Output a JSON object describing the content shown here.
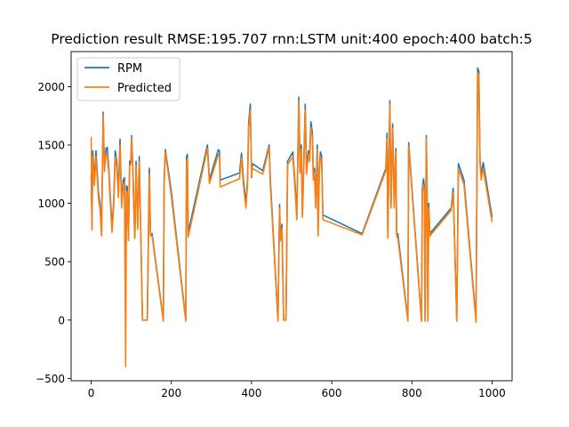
{
  "chart_data": {
    "type": "line",
    "title": "Prediction result RMSE:195.707 rnn:LSTM unit:400 epoch:400 batch:5",
    "xlabel": "",
    "ylabel": "",
    "xlim": [
      -50,
      1050
    ],
    "ylim": [
      -520,
      2300
    ],
    "xticks": [
      0,
      200,
      400,
      600,
      800,
      1000
    ],
    "yticks": [
      -500,
      0,
      500,
      1000,
      1500,
      2000
    ],
    "xtick_labels": [
      "0",
      "200",
      "400",
      "600",
      "800",
      "1000"
    ],
    "ytick_labels": [
      "−500",
      "0",
      "500",
      "1000",
      "1500",
      "2000"
    ],
    "grid": false,
    "legend_position": "upper left",
    "series": [
      {
        "name": "RPM",
        "color": "#1f77b4",
        "points": [
          [
            0,
            1250
          ],
          [
            2,
            800
          ],
          [
            4,
            1450
          ],
          [
            8,
            1200
          ],
          [
            12,
            1450
          ],
          [
            18,
            1100
          ],
          [
            22,
            1000
          ],
          [
            26,
            750
          ],
          [
            30,
            1780
          ],
          [
            33,
            1300
          ],
          [
            37,
            1470
          ],
          [
            40,
            1480
          ],
          [
            44,
            1300
          ],
          [
            47,
            1100
          ],
          [
            52,
            800
          ],
          [
            56,
            1000
          ],
          [
            60,
            1450
          ],
          [
            64,
            1350
          ],
          [
            68,
            1100
          ],
          [
            72,
            1550
          ],
          [
            76,
            1000
          ],
          [
            80,
            1200
          ],
          [
            83,
            1220
          ],
          [
            86,
            0
          ],
          [
            88,
            1150
          ],
          [
            90,
            1140
          ],
          [
            93,
            700
          ],
          [
            96,
            1360
          ],
          [
            99,
            1370
          ],
          [
            101,
            1580
          ],
          [
            104,
            1300
          ],
          [
            107,
            900
          ],
          [
            109,
            700
          ],
          [
            112,
            1360
          ],
          [
            116,
            800
          ],
          [
            120,
            1400
          ],
          [
            124,
            700
          ],
          [
            128,
            0
          ],
          [
            135,
            0
          ],
          [
            140,
            0
          ],
          [
            145,
            1300
          ],
          [
            148,
            740
          ],
          [
            152,
            740
          ],
          [
            180,
            0
          ],
          [
            182,
            1200
          ],
          [
            185,
            1460
          ],
          [
            200,
            1100
          ],
          [
            236,
            0
          ],
          [
            238,
            1400
          ],
          [
            240,
            1420
          ],
          [
            242,
            750
          ],
          [
            290,
            1500
          ],
          [
            295,
            1200
          ],
          [
            312,
            1400
          ],
          [
            317,
            1460
          ],
          [
            320,
            1450
          ],
          [
            322,
            1200
          ],
          [
            370,
            1260
          ],
          [
            375,
            1430
          ],
          [
            380,
            1200
          ],
          [
            386,
            1000
          ],
          [
            390,
            1200
          ],
          [
            393,
            1700
          ],
          [
            397,
            1850
          ],
          [
            400,
            1220
          ],
          [
            402,
            1340
          ],
          [
            428,
            1280
          ],
          [
            444,
            1500
          ],
          [
            447,
            1200
          ],
          [
            466,
            0
          ],
          [
            470,
            990
          ],
          [
            472,
            700
          ],
          [
            476,
            820
          ],
          [
            480,
            0
          ],
          [
            486,
            0
          ],
          [
            490,
            1360
          ],
          [
            503,
            1440
          ],
          [
            508,
            1200
          ],
          [
            513,
            900
          ],
          [
            518,
            1910
          ],
          [
            521,
            1300
          ],
          [
            524,
            1500
          ],
          [
            527,
            900
          ],
          [
            530,
            1300
          ],
          [
            534,
            1850
          ],
          [
            537,
            1300
          ],
          [
            540,
            1400
          ],
          [
            542,
            1450
          ],
          [
            545,
            1400
          ],
          [
            548,
            1700
          ],
          [
            552,
            1600
          ],
          [
            554,
            1250
          ],
          [
            557,
            1300
          ],
          [
            560,
            1000
          ],
          [
            564,
            1500
          ],
          [
            566,
            740
          ],
          [
            569,
            1300
          ],
          [
            572,
            1440
          ],
          [
            575,
            1400
          ],
          [
            578,
            900
          ],
          [
            676,
            740
          ],
          [
            735,
            1300
          ],
          [
            738,
            1600
          ],
          [
            740,
            740
          ],
          [
            742,
            1200
          ],
          [
            745,
            1880
          ],
          [
            748,
            1000
          ],
          [
            752,
            1680
          ],
          [
            756,
            1000
          ],
          [
            760,
            1470
          ],
          [
            762,
            740
          ],
          [
            765,
            740
          ],
          [
            790,
            0
          ],
          [
            792,
            1520
          ],
          [
            824,
            0
          ],
          [
            826,
            1120
          ],
          [
            829,
            1210
          ],
          [
            831,
            1150
          ],
          [
            833,
            0
          ],
          [
            836,
            1580
          ],
          [
            838,
            1100
          ],
          [
            840,
            0
          ],
          [
            842,
            1000
          ],
          [
            845,
            740
          ],
          [
            898,
            960
          ],
          [
            903,
            1130
          ],
          [
            912,
            0
          ],
          [
            916,
            1340
          ],
          [
            930,
            1200
          ],
          [
            960,
            0
          ],
          [
            964,
            2160
          ],
          [
            967,
            2130
          ],
          [
            970,
            1370
          ],
          [
            973,
            1250
          ],
          [
            978,
            1350
          ],
          [
            1000,
            880
          ]
        ]
      },
      {
        "name": "Predicted",
        "color": "#ff7f0e",
        "points": [
          [
            0,
            1570
          ],
          [
            2,
            770
          ],
          [
            4,
            1400
          ],
          [
            8,
            1150
          ],
          [
            12,
            1400
          ],
          [
            18,
            1050
          ],
          [
            22,
            950
          ],
          [
            26,
            720
          ],
          [
            30,
            1760
          ],
          [
            33,
            1270
          ],
          [
            37,
            1420
          ],
          [
            40,
            1420
          ],
          [
            44,
            1260
          ],
          [
            47,
            1050
          ],
          [
            52,
            750
          ],
          [
            56,
            960
          ],
          [
            60,
            1400
          ],
          [
            64,
            1300
          ],
          [
            68,
            1050
          ],
          [
            72,
            1500
          ],
          [
            76,
            960
          ],
          [
            80,
            1150
          ],
          [
            83,
            1180
          ],
          [
            86,
            -400
          ],
          [
            88,
            1100
          ],
          [
            90,
            1100
          ],
          [
            93,
            680
          ],
          [
            96,
            1320
          ],
          [
            99,
            1340
          ],
          [
            101,
            1560
          ],
          [
            104,
            1270
          ],
          [
            107,
            880
          ],
          [
            109,
            700
          ],
          [
            112,
            1320
          ],
          [
            116,
            780
          ],
          [
            120,
            1360
          ],
          [
            124,
            700
          ],
          [
            128,
            0
          ],
          [
            135,
            0
          ],
          [
            140,
            0
          ],
          [
            145,
            1250
          ],
          [
            148,
            720
          ],
          [
            152,
            720
          ],
          [
            180,
            -10
          ],
          [
            182,
            1150
          ],
          [
            185,
            1440
          ],
          [
            200,
            1060
          ],
          [
            236,
            -10
          ],
          [
            238,
            1350
          ],
          [
            240,
            1380
          ],
          [
            242,
            710
          ],
          [
            290,
            1470
          ],
          [
            295,
            1170
          ],
          [
            312,
            1360
          ],
          [
            317,
            1420
          ],
          [
            320,
            1400
          ],
          [
            322,
            1140
          ],
          [
            370,
            1210
          ],
          [
            375,
            1390
          ],
          [
            380,
            1150
          ],
          [
            386,
            960
          ],
          [
            390,
            1160
          ],
          [
            393,
            1650
          ],
          [
            397,
            1800
          ],
          [
            400,
            1230
          ],
          [
            402,
            1300
          ],
          [
            428,
            1250
          ],
          [
            444,
            1480
          ],
          [
            447,
            1150
          ],
          [
            466,
            -10
          ],
          [
            470,
            960
          ],
          [
            472,
            680
          ],
          [
            476,
            790
          ],
          [
            480,
            0
          ],
          [
            486,
            0
          ],
          [
            490,
            1330
          ],
          [
            503,
            1400
          ],
          [
            508,
            1150
          ],
          [
            513,
            860
          ],
          [
            518,
            1870
          ],
          [
            521,
            1260
          ],
          [
            524,
            1460
          ],
          [
            527,
            880
          ],
          [
            530,
            1260
          ],
          [
            534,
            1800
          ],
          [
            537,
            1250
          ],
          [
            540,
            1350
          ],
          [
            542,
            1420
          ],
          [
            545,
            1360
          ],
          [
            548,
            1650
          ],
          [
            552,
            1560
          ],
          [
            554,
            1200
          ],
          [
            557,
            1260
          ],
          [
            560,
            960
          ],
          [
            564,
            1460
          ],
          [
            566,
            720
          ],
          [
            569,
            1250
          ],
          [
            572,
            1400
          ],
          [
            575,
            1360
          ],
          [
            578,
            860
          ],
          [
            676,
            730
          ],
          [
            735,
            1280
          ],
          [
            738,
            1550
          ],
          [
            740,
            700
          ],
          [
            742,
            1150
          ],
          [
            745,
            1850
          ],
          [
            748,
            960
          ],
          [
            752,
            1640
          ],
          [
            756,
            960
          ],
          [
            760,
            1440
          ],
          [
            762,
            720
          ],
          [
            765,
            700
          ],
          [
            790,
            -10
          ],
          [
            792,
            1490
          ],
          [
            824,
            -10
          ],
          [
            826,
            1080
          ],
          [
            829,
            1160
          ],
          [
            831,
            1110
          ],
          [
            833,
            -10
          ],
          [
            836,
            1560
          ],
          [
            838,
            1060
          ],
          [
            840,
            -10
          ],
          [
            842,
            960
          ],
          [
            845,
            720
          ],
          [
            898,
            940
          ],
          [
            903,
            1090
          ],
          [
            912,
            -10
          ],
          [
            916,
            1300
          ],
          [
            930,
            1160
          ],
          [
            960,
            -20
          ],
          [
            964,
            2120
          ],
          [
            967,
            2100
          ],
          [
            970,
            1340
          ],
          [
            973,
            1200
          ],
          [
            978,
            1300
          ],
          [
            1000,
            840
          ]
        ]
      }
    ]
  }
}
